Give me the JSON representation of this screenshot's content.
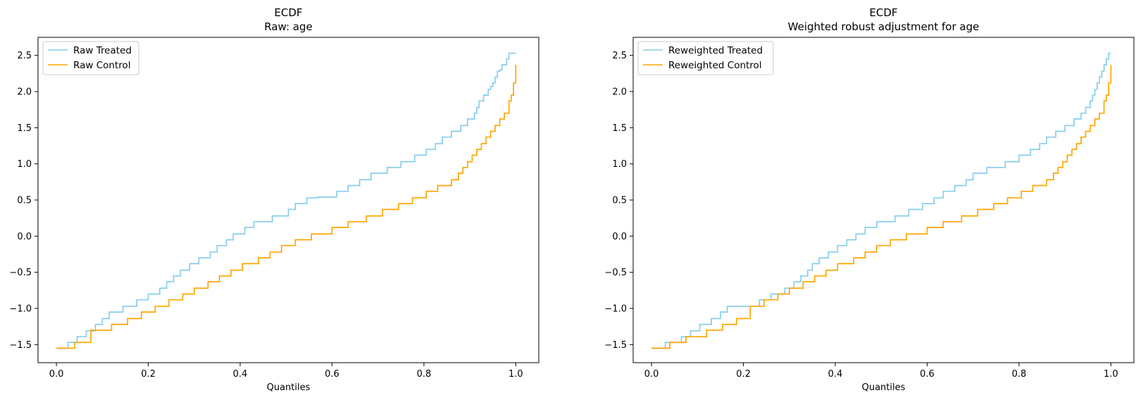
{
  "colors": {
    "treated": "#87CEEB",
    "control": "#FFA500",
    "axis": "#000000",
    "background": "#ffffff"
  },
  "chart_data": [
    {
      "type": "line",
      "title": "ECDF",
      "subtitle": "Raw: age",
      "xlabel": "Quantiles",
      "ylabel": "",
      "xlim": [
        -0.04,
        1.05
      ],
      "ylim": [
        -1.75,
        2.75
      ],
      "xticks": [
        0.0,
        0.2,
        0.4,
        0.6,
        0.8,
        1.0
      ],
      "xtick_labels": [
        "0.0",
        "0.2",
        "0.4",
        "0.6",
        "0.8",
        "1.0"
      ],
      "yticks": [
        -1.5,
        -1.0,
        -0.5,
        0.0,
        0.5,
        1.0,
        1.5,
        2.0,
        2.5
      ],
      "ytick_labels": [
        "−1.5",
        "−1.0",
        "−0.5",
        "0.0",
        "0.5",
        "1.0",
        "1.5",
        "2.0",
        "2.5"
      ],
      "grid": false,
      "legend": "upper-left",
      "step": "post",
      "series": [
        {
          "name": "Raw Treated",
          "color_key": "treated",
          "x": [
            0.0,
            0.025,
            0.045,
            0.065,
            0.085,
            0.1,
            0.115,
            0.145,
            0.175,
            0.2,
            0.225,
            0.24,
            0.255,
            0.27,
            0.29,
            0.31,
            0.335,
            0.35,
            0.37,
            0.385,
            0.41,
            0.43,
            0.47,
            0.505,
            0.52,
            0.545,
            0.57,
            0.61,
            0.635,
            0.66,
            0.685,
            0.72,
            0.75,
            0.78,
            0.805,
            0.825,
            0.84,
            0.86,
            0.88,
            0.895,
            0.91,
            0.915,
            0.92,
            0.93,
            0.94,
            0.945,
            0.95,
            0.955,
            0.96,
            0.965,
            0.97,
            0.975,
            0.98,
            0.985,
            0.99,
            0.995,
            1.0
          ],
          "y": [
            -1.55,
            -1.47,
            -1.39,
            -1.31,
            -1.22,
            -1.14,
            -1.05,
            -0.97,
            -0.88,
            -0.8,
            -0.72,
            -0.63,
            -0.55,
            -0.47,
            -0.38,
            -0.3,
            -0.22,
            -0.13,
            -0.05,
            0.03,
            0.12,
            0.2,
            0.28,
            0.37,
            0.45,
            0.53,
            0.54,
            0.62,
            0.7,
            0.78,
            0.87,
            0.95,
            1.03,
            1.12,
            1.2,
            1.28,
            1.37,
            1.45,
            1.53,
            1.62,
            1.7,
            1.78,
            1.87,
            1.95,
            2.03,
            2.07,
            2.12,
            2.2,
            2.28,
            2.3,
            2.37,
            2.37,
            2.45,
            2.53,
            2.53,
            2.53,
            2.53
          ]
        },
        {
          "name": "Raw Control",
          "color_key": "control",
          "x": [
            0.0,
            0.04,
            0.075,
            0.12,
            0.155,
            0.185,
            0.215,
            0.245,
            0.275,
            0.3,
            0.33,
            0.355,
            0.38,
            0.405,
            0.44,
            0.465,
            0.49,
            0.52,
            0.555,
            0.6,
            0.635,
            0.675,
            0.71,
            0.745,
            0.775,
            0.805,
            0.83,
            0.86,
            0.875,
            0.885,
            0.895,
            0.905,
            0.915,
            0.925,
            0.935,
            0.945,
            0.955,
            0.965,
            0.975,
            0.985,
            0.99,
            0.995,
            1.0
          ],
          "y": [
            -1.55,
            -1.47,
            -1.3,
            -1.22,
            -1.14,
            -1.05,
            -0.97,
            -0.88,
            -0.8,
            -0.72,
            -0.63,
            -0.55,
            -0.47,
            -0.38,
            -0.3,
            -0.22,
            -0.13,
            -0.05,
            0.03,
            0.12,
            0.2,
            0.28,
            0.37,
            0.45,
            0.53,
            0.62,
            0.7,
            0.78,
            0.87,
            0.95,
            1.03,
            1.12,
            1.2,
            1.28,
            1.37,
            1.45,
            1.53,
            1.62,
            1.7,
            1.87,
            1.95,
            2.12,
            2.37
          ]
        }
      ]
    },
    {
      "type": "line",
      "title": "ECDF",
      "subtitle": "Weighted robust adjustment for age",
      "xlabel": "Quantiles",
      "ylabel": "",
      "xlim": [
        -0.04,
        1.05
      ],
      "ylim": [
        -1.75,
        2.75
      ],
      "xticks": [
        0.0,
        0.2,
        0.4,
        0.6,
        0.8,
        1.0
      ],
      "xtick_labels": [
        "0.0",
        "0.2",
        "0.4",
        "0.6",
        "0.8",
        "1.0"
      ],
      "yticks": [
        -1.5,
        -1.0,
        -0.5,
        0.0,
        0.5,
        1.0,
        1.5,
        2.0,
        2.5
      ],
      "ytick_labels": [
        "−1.5",
        "−1.0",
        "−0.5",
        "0.0",
        "0.5",
        "1.0",
        "1.5",
        "2.0",
        "2.5"
      ],
      "grid": false,
      "legend": "upper-left",
      "step": "post",
      "series": [
        {
          "name": "Reweighted Treated",
          "color_key": "treated",
          "x": [
            0.0,
            0.03,
            0.065,
            0.085,
            0.105,
            0.13,
            0.15,
            0.165,
            0.2,
            0.235,
            0.26,
            0.29,
            0.31,
            0.325,
            0.34,
            0.35,
            0.365,
            0.385,
            0.405,
            0.425,
            0.445,
            0.465,
            0.49,
            0.51,
            0.53,
            0.56,
            0.59,
            0.615,
            0.635,
            0.66,
            0.685,
            0.7,
            0.73,
            0.77,
            0.8,
            0.825,
            0.845,
            0.86,
            0.88,
            0.9,
            0.92,
            0.935,
            0.945,
            0.955,
            0.96,
            0.965,
            0.97,
            0.975,
            0.98,
            0.985,
            0.99,
            0.995,
            1.0
          ],
          "y": [
            -1.55,
            -1.47,
            -1.39,
            -1.31,
            -1.22,
            -1.14,
            -1.05,
            -0.97,
            -0.97,
            -0.88,
            -0.8,
            -0.72,
            -0.63,
            -0.55,
            -0.47,
            -0.38,
            -0.3,
            -0.22,
            -0.13,
            -0.05,
            0.03,
            0.12,
            0.2,
            0.2,
            0.28,
            0.37,
            0.45,
            0.53,
            0.62,
            0.7,
            0.78,
            0.87,
            0.95,
            1.03,
            1.12,
            1.2,
            1.28,
            1.37,
            1.45,
            1.53,
            1.62,
            1.7,
            1.78,
            1.87,
            1.95,
            2.03,
            2.12,
            2.2,
            2.28,
            2.37,
            2.45,
            2.53,
            2.53
          ]
        },
        {
          "name": "Reweighted Control",
          "color_key": "control",
          "x": [
            0.0,
            0.04,
            0.075,
            0.12,
            0.155,
            0.185,
            0.215,
            0.245,
            0.275,
            0.3,
            0.33,
            0.355,
            0.38,
            0.405,
            0.44,
            0.465,
            0.49,
            0.52,
            0.555,
            0.6,
            0.635,
            0.675,
            0.71,
            0.745,
            0.775,
            0.805,
            0.83,
            0.86,
            0.875,
            0.885,
            0.895,
            0.905,
            0.915,
            0.925,
            0.935,
            0.945,
            0.955,
            0.965,
            0.975,
            0.985,
            0.99,
            0.995,
            1.0
          ],
          "y": [
            -1.55,
            -1.47,
            -1.39,
            -1.3,
            -1.22,
            -1.14,
            -0.97,
            -0.88,
            -0.8,
            -0.72,
            -0.63,
            -0.55,
            -0.47,
            -0.38,
            -0.3,
            -0.22,
            -0.13,
            -0.05,
            0.03,
            0.12,
            0.2,
            0.28,
            0.37,
            0.45,
            0.53,
            0.62,
            0.7,
            0.78,
            0.87,
            0.95,
            1.03,
            1.12,
            1.2,
            1.28,
            1.37,
            1.45,
            1.53,
            1.62,
            1.7,
            1.87,
            1.95,
            2.12,
            2.37
          ]
        }
      ]
    }
  ]
}
